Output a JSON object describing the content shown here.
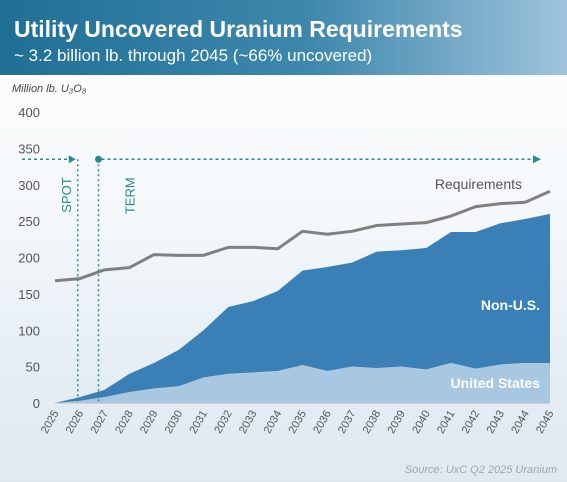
{
  "header": {
    "title": "Utility Uncovered Uranium Requirements",
    "subtitle": "~ 3.2 billion lb. through 2045 (~66% uncovered)"
  },
  "unit_label": "Million lb. U₃O₈",
  "source": "Source: UxC Q2 2025 Uranium",
  "colors": {
    "header": "#2a7aa2",
    "non_us": "#3a7fb5",
    "united_states": "#a8c8e2",
    "requirements": "#808080",
    "marker": "#2a8a8a"
  },
  "chart_data": {
    "type": "area",
    "x": [
      "2025",
      "2026",
      "2027",
      "2028",
      "2029",
      "2030",
      "2031",
      "2032",
      "2033",
      "2034",
      "2035",
      "2036",
      "2037",
      "2038",
      "2039",
      "2040",
      "2041",
      "2042",
      "2043",
      "2044",
      "2045"
    ],
    "ylim": [
      0,
      400
    ],
    "yticks": [
      0,
      50,
      100,
      150,
      200,
      250,
      300,
      350,
      400
    ],
    "series": [
      {
        "name": "United States",
        "values": [
          0,
          3,
          8,
          15,
          20,
          23,
          35,
          40,
          42,
          44,
          52,
          44,
          50,
          48,
          50,
          46,
          55,
          47,
          53,
          55,
          55
        ]
      },
      {
        "name": "Non-U.S.",
        "values": [
          0,
          5,
          10,
          25,
          35,
          50,
          65,
          92,
          98,
          110,
          130,
          143,
          143,
          160,
          160,
          167,
          180,
          188,
          194,
          198,
          205
        ]
      },
      {
        "name": "Requirements",
        "values": [
          168,
          171,
          183,
          186,
          204,
          203,
          203,
          214,
          214,
          212,
          236,
          232,
          236,
          244,
          246,
          248,
          257,
          270,
          274,
          276,
          291
        ]
      }
    ],
    "markers": [
      {
        "label": "SPOT",
        "from": "2025",
        "to": "2026"
      },
      {
        "label": "TERM",
        "from": "2027",
        "to": "2045"
      }
    ],
    "marker_level": 335
  }
}
